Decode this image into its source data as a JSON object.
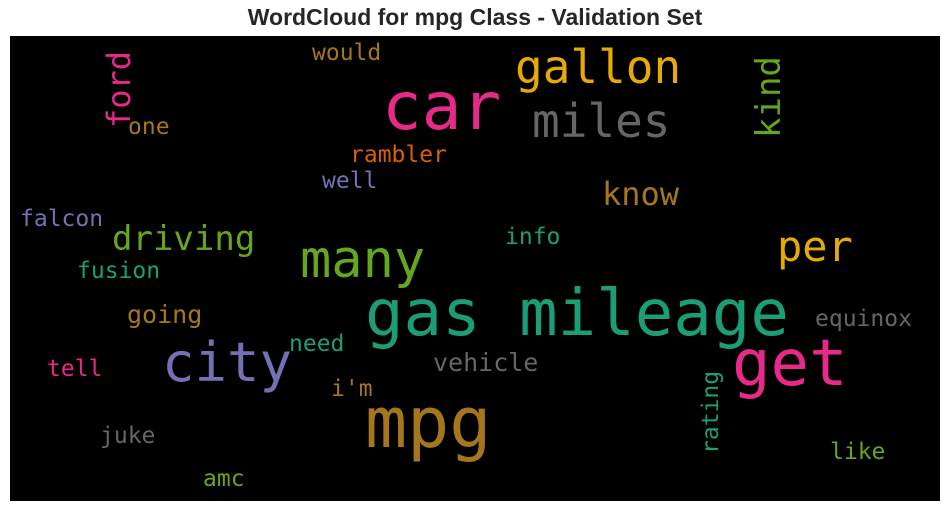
{
  "title": "WordCloud for mpg Class - Validation Set",
  "words": [
    {
      "text": "car",
      "color": "#e7298a"
    },
    {
      "text": "gallon",
      "color": "#e6ab02"
    },
    {
      "text": "miles",
      "color": "#666666"
    },
    {
      "text": "kind",
      "color": "#66a61e"
    },
    {
      "text": "ford",
      "color": "#e7298a"
    },
    {
      "text": "would",
      "color": "#a6761d"
    },
    {
      "text": "one",
      "color": "#a6761d"
    },
    {
      "text": "rambler",
      "color": "#d95f02"
    },
    {
      "text": "well",
      "color": "#7570b3"
    },
    {
      "text": "know",
      "color": "#a6761d"
    },
    {
      "text": "falcon",
      "color": "#7570b3"
    },
    {
      "text": "driving",
      "color": "#66a61e"
    },
    {
      "text": "info",
      "color": "#1b9e77"
    },
    {
      "text": "per",
      "color": "#e6ab02"
    },
    {
      "text": "many",
      "color": "#66a61e"
    },
    {
      "text": "fusion",
      "color": "#1b9e77"
    },
    {
      "text": "gas mileage",
      "color": "#1b9e77"
    },
    {
      "text": "going",
      "color": "#a6761d"
    },
    {
      "text": "equinox",
      "color": "#666666"
    },
    {
      "text": "need",
      "color": "#1b9e77"
    },
    {
      "text": "city",
      "color": "#7570b3"
    },
    {
      "text": "get",
      "color": "#e7298a"
    },
    {
      "text": "tell",
      "color": "#e7298a"
    },
    {
      "text": "vehicle",
      "color": "#666666"
    },
    {
      "text": "i'm",
      "color": "#a6761d"
    },
    {
      "text": "rating",
      "color": "#1b9e77"
    },
    {
      "text": "mpg",
      "color": "#a6761d"
    },
    {
      "text": "juke",
      "color": "#666666"
    },
    {
      "text": "like",
      "color": "#66a61e"
    },
    {
      "text": "amc",
      "color": "#66a61e"
    }
  ]
}
